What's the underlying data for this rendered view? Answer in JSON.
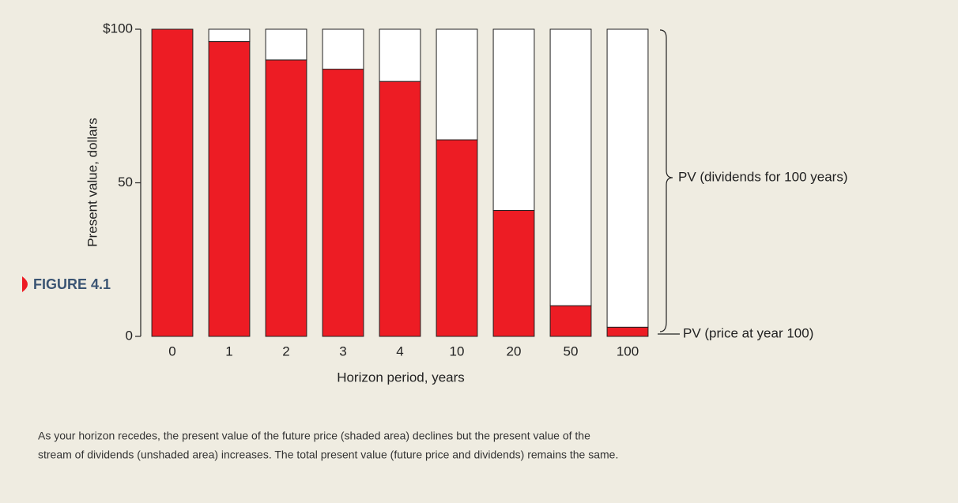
{
  "chart_data": {
    "type": "stacked_bar",
    "categories": [
      "0",
      "1",
      "2",
      "3",
      "4",
      "10",
      "20",
      "50",
      "100"
    ],
    "series": [
      {
        "name": "PV (price at year 100)",
        "color": "#ed1c24",
        "values": [
          100,
          96,
          90,
          87,
          83,
          64,
          41,
          10,
          3
        ]
      },
      {
        "name": "PV (dividends for 100 years)",
        "color": "#ffffff",
        "values": [
          0,
          4,
          10,
          13,
          17,
          36,
          59,
          90,
          97
        ]
      }
    ],
    "ylim": [
      0,
      100
    ],
    "yticks": [
      0,
      50,
      {
        "value": 100,
        "label": "$100"
      }
    ],
    "ylabel": "Present value, dollars",
    "xlabel": "Horizon period, years",
    "figure_label": "FIGURE 4.1",
    "caption": [
      "As your horizon recedes, the present value of the future price (shaded area) declines but the present value of the",
      "stream of dividends (unshaded area) increases. The total present value (future price and dividends) remains the same."
    ]
  }
}
